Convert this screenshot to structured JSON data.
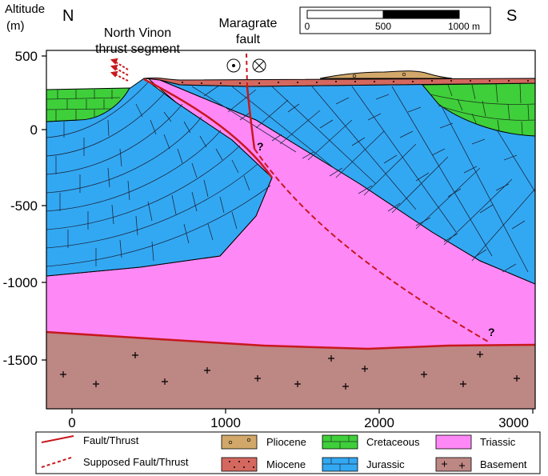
{
  "axes": {
    "y_title_line1": "Altitude",
    "y_title_line2": "(m)",
    "y_ticks": [
      "500",
      "0",
      "-500",
      "-1000",
      "-1500"
    ],
    "x_ticks": [
      "0",
      "1000",
      "2000",
      "3000"
    ]
  },
  "labels": {
    "north": "N",
    "south": "S",
    "thrust_line1": "North Vinon",
    "thrust_line2": "thrust segment",
    "fault_line1": "Maragrate",
    "fault_line2": "fault",
    "question_upper": "?",
    "question_lower": "?"
  },
  "scale_bar": {
    "ticks": [
      "0",
      "500",
      "1000 m"
    ]
  },
  "legend": {
    "fault": "Fault/Thrust",
    "supposed_fault": "Supposed Fault/Thrust",
    "pliocene": "Pliocene",
    "miocene": "Miocene",
    "cretaceous": "Cretaceous",
    "jurassic": "Jurassic",
    "triassic": "Triassic",
    "basement": "Basement"
  },
  "colors": {
    "pliocene": "#d2a86a",
    "miocene": "#d4685f",
    "cretaceous": "#3fcf3a",
    "jurassic": "#33a8f2",
    "triassic": "#ff88f7",
    "basement": "#bd8784",
    "fault": "#c8181e"
  }
}
